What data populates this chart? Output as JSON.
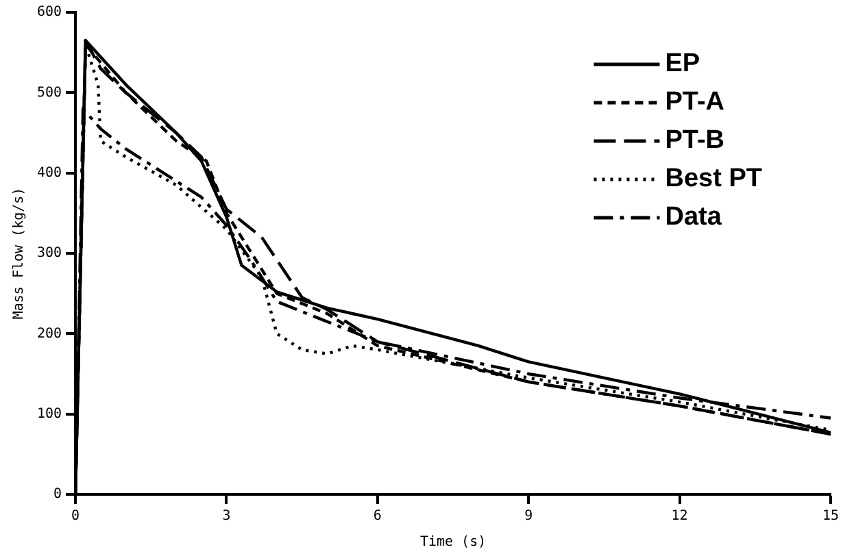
{
  "chart_data": {
    "type": "line",
    "xlabel": "Time (s)",
    "ylabel": "Mass Flow (kg/s)",
    "xlim": [
      0,
      15
    ],
    "xticks": [
      0,
      3,
      6,
      9,
      12,
      15
    ],
    "ylim": [
      0,
      600
    ],
    "yticks": [
      0,
      100,
      200,
      300,
      400,
      500,
      600
    ],
    "legend": "top right",
    "marker": "none",
    "series": [
      {
        "name": "EP",
        "color": "#000000",
        "line_style": "solid",
        "x": [
          0,
          0.2,
          1,
          2,
          2.5,
          3,
          3.3,
          4,
          5,
          6,
          8,
          9,
          12,
          15
        ],
        "values": [
          0,
          565,
          510,
          450,
          415,
          345,
          285,
          252,
          232,
          218,
          185,
          165,
          125,
          77
        ]
      },
      {
        "name": "PT-A",
        "color": "#000000",
        "line_style": "dashed",
        "x": [
          0,
          0.2,
          1,
          2,
          2.6,
          3,
          3.5,
          4,
          5,
          6,
          9,
          12,
          15
        ],
        "values": [
          0,
          560,
          500,
          440,
          415,
          350,
          300,
          250,
          225,
          185,
          140,
          110,
          75
        ]
      },
      {
        "name": "PT-B",
        "color": "#000000",
        "line_style": "longdash",
        "x": [
          0,
          0.2,
          0.5,
          1,
          2,
          2.5,
          3,
          3.7,
          4.5,
          5,
          6,
          9,
          12,
          15
        ],
        "values": [
          0,
          565,
          530,
          500,
          450,
          420,
          355,
          320,
          245,
          230,
          190,
          140,
          110,
          75
        ]
      },
      {
        "name": "Best PT",
        "color": "#000000",
        "line_style": "dotted",
        "x": [
          0,
          0.2,
          0.45,
          0.5,
          1,
          2,
          3,
          3.7,
          4,
          4.5,
          5,
          5.5,
          6,
          9,
          12,
          15
        ],
        "values": [
          0,
          560,
          510,
          440,
          420,
          385,
          330,
          270,
          200,
          180,
          175,
          185,
          180,
          145,
          115,
          80
        ]
      },
      {
        "name": "Data",
        "color": "#000000",
        "line_style": "dashdot",
        "x": [
          0,
          0.15,
          0.5,
          1,
          1.5,
          2,
          2.5,
          3,
          3.5,
          4,
          5,
          6,
          9,
          12,
          15
        ],
        "values": [
          0,
          480,
          455,
          430,
          410,
          390,
          370,
          335,
          290,
          240,
          215,
          190,
          150,
          120,
          95
        ]
      }
    ]
  }
}
